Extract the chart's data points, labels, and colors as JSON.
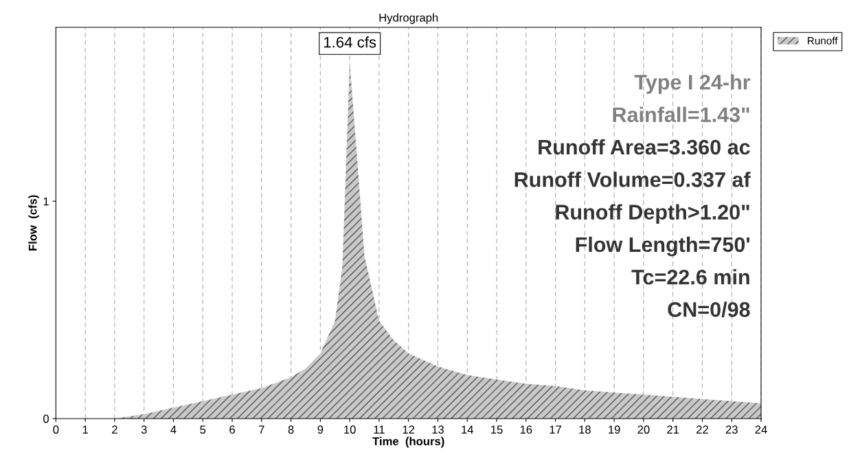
{
  "chart_data": {
    "type": "area",
    "title": "Hydrograph",
    "xlabel": "Time  (hours)",
    "ylabel": "Flow  (cfs)",
    "x": [
      0,
      1,
      2,
      3,
      4,
      5,
      6,
      7,
      8,
      8.5,
      9,
      9.5,
      9.75,
      10,
      10.25,
      10.5,
      11,
      11.5,
      12,
      13,
      14,
      15,
      16,
      17,
      18,
      19,
      20,
      21,
      22,
      23,
      24
    ],
    "series": [
      {
        "name": "Runoff",
        "color": "#c8c8c8",
        "values": [
          0,
          0,
          0,
          0.02,
          0.05,
          0.08,
          0.11,
          0.14,
          0.19,
          0.23,
          0.3,
          0.45,
          0.7,
          1.64,
          1.2,
          0.75,
          0.45,
          0.36,
          0.3,
          0.24,
          0.2,
          0.18,
          0.16,
          0.15,
          0.13,
          0.12,
          0.11,
          0.1,
          0.09,
          0.08,
          0.07
        ]
      }
    ],
    "xlim": [
      0,
      24
    ],
    "xticks": [
      0,
      1,
      2,
      3,
      4,
      5,
      6,
      7,
      8,
      9,
      10,
      11,
      12,
      13,
      14,
      15,
      16,
      17,
      18,
      19,
      20,
      21,
      22,
      23,
      24
    ],
    "ylim": [
      0,
      1.8
    ],
    "yticks": [
      0,
      1
    ],
    "grid": "x",
    "legend": "top right",
    "annotations": [
      {
        "text": "1.64 cfs",
        "x": 10,
        "y": 1.64
      },
      "Type I 24-hr",
      "Rainfall=1.43\"",
      "Runoff Area=3.360 ac",
      "Runoff Volume=0.337 af",
      "Runoff Depth>1.20\"",
      "Flow Length=750'",
      "Tc=22.6 min",
      "CN=0/98"
    ]
  }
}
